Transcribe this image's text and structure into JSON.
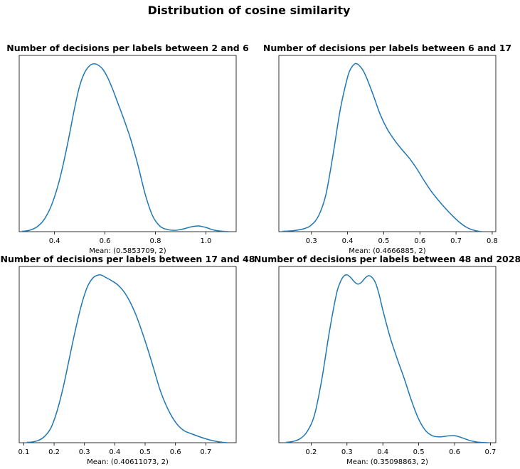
{
  "figure": {
    "title": "Distribution of cosine similarity"
  },
  "chart_data": [
    {
      "type": "line",
      "title": "Number of decisions per labels between 2 and 6",
      "xlabel": "Mean: (0.5853709, 2)",
      "ylabel": "",
      "xlim": [
        0.26,
        1.12
      ],
      "ylim": [
        0,
        1.05
      ],
      "xticks": [
        0.4,
        0.6,
        0.8,
        1.0
      ],
      "xtick_labels": [
        "0.4",
        "0.6",
        "0.8",
        "1.0"
      ],
      "yticks_visible": false,
      "grid": false,
      "color": "#1f77b4",
      "x": [
        0.27,
        0.3,
        0.33,
        0.36,
        0.39,
        0.42,
        0.45,
        0.48,
        0.5,
        0.52,
        0.54,
        0.555,
        0.57,
        0.59,
        0.61,
        0.63,
        0.65,
        0.67,
        0.7,
        0.73,
        0.76,
        0.79,
        0.82,
        0.85,
        0.88,
        0.91,
        0.94,
        0.97,
        1.0,
        1.03,
        1.06,
        1.09
      ],
      "y": [
        0.002,
        0.008,
        0.028,
        0.075,
        0.165,
        0.31,
        0.51,
        0.74,
        0.87,
        0.95,
        0.99,
        1.0,
        0.995,
        0.97,
        0.92,
        0.85,
        0.77,
        0.69,
        0.56,
        0.4,
        0.22,
        0.09,
        0.03,
        0.012,
        0.008,
        0.016,
        0.028,
        0.034,
        0.025,
        0.01,
        0.003,
        0.0
      ]
    },
    {
      "type": "line",
      "title": "Number of decisions per labels between 6 and 17",
      "xlabel": "Mean: (0.4666885, 2)",
      "ylabel": "",
      "xlim": [
        0.21,
        0.81
      ],
      "ylim": [
        0,
        1.05
      ],
      "xticks": [
        0.3,
        0.4,
        0.5,
        0.6,
        0.7,
        0.8
      ],
      "xtick_labels": [
        "0.3",
        "0.4",
        "0.5",
        "0.6",
        "0.7",
        "0.8"
      ],
      "yticks_visible": false,
      "grid": false,
      "color": "#1f77b4",
      "x": [
        0.22,
        0.25,
        0.28,
        0.3,
        0.32,
        0.34,
        0.36,
        0.38,
        0.4,
        0.41,
        0.42,
        0.425,
        0.43,
        0.44,
        0.45,
        0.47,
        0.49,
        0.51,
        0.53,
        0.55,
        0.57,
        0.59,
        0.61,
        0.63,
        0.65,
        0.67,
        0.69,
        0.71,
        0.73,
        0.75,
        0.77
      ],
      "y": [
        0.002,
        0.006,
        0.018,
        0.04,
        0.095,
        0.22,
        0.46,
        0.73,
        0.92,
        0.975,
        1.0,
        1.0,
        0.995,
        0.97,
        0.93,
        0.82,
        0.7,
        0.61,
        0.545,
        0.49,
        0.44,
        0.38,
        0.31,
        0.245,
        0.19,
        0.14,
        0.095,
        0.055,
        0.025,
        0.008,
        0.0
      ]
    },
    {
      "type": "line",
      "title": "Number of decisions per labels between 17 and 48",
      "xlabel": "Mean: (0.40611073, 2)",
      "ylabel": "",
      "xlim": [
        0.085,
        0.8
      ],
      "ylim": [
        0,
        1.05
      ],
      "xticks": [
        0.1,
        0.2,
        0.3,
        0.4,
        0.5,
        0.6,
        0.7
      ],
      "xtick_labels": [
        "0.1",
        "0.2",
        "0.3",
        "0.4",
        "0.5",
        "0.6",
        "0.7"
      ],
      "yticks_visible": false,
      "grid": false,
      "color": "#1f77b4",
      "x": [
        0.11,
        0.13,
        0.15,
        0.17,
        0.19,
        0.21,
        0.23,
        0.25,
        0.27,
        0.29,
        0.31,
        0.33,
        0.35,
        0.36,
        0.37,
        0.39,
        0.41,
        0.43,
        0.45,
        0.47,
        0.49,
        0.51,
        0.53,
        0.55,
        0.57,
        0.59,
        0.61,
        0.63,
        0.65,
        0.68,
        0.71,
        0.74,
        0.77
      ],
      "y": [
        0.002,
        0.005,
        0.015,
        0.04,
        0.09,
        0.19,
        0.33,
        0.5,
        0.67,
        0.82,
        0.93,
        0.985,
        1.0,
        0.995,
        0.985,
        0.965,
        0.94,
        0.9,
        0.84,
        0.76,
        0.66,
        0.55,
        0.43,
        0.31,
        0.22,
        0.15,
        0.1,
        0.07,
        0.055,
        0.035,
        0.018,
        0.006,
        0.0
      ]
    },
    {
      "type": "line",
      "title": "Number of decisions per labels between 48 and 2028",
      "xlabel": "Mean: (0.35098863, 2)",
      "ylabel": "",
      "xlim": [
        0.11,
        0.715
      ],
      "ylim": [
        0,
        1.05
      ],
      "xticks": [
        0.2,
        0.3,
        0.4,
        0.5,
        0.6,
        0.7
      ],
      "xtick_labels": [
        "0.2",
        "0.3",
        "0.4",
        "0.5",
        "0.6",
        "0.7"
      ],
      "yticks_visible": false,
      "grid": false,
      "color": "#1f77b4",
      "x": [
        0.13,
        0.15,
        0.17,
        0.19,
        0.21,
        0.23,
        0.25,
        0.27,
        0.28,
        0.29,
        0.3,
        0.31,
        0.32,
        0.33,
        0.34,
        0.35,
        0.36,
        0.37,
        0.38,
        0.39,
        0.4,
        0.42,
        0.44,
        0.46,
        0.48,
        0.5,
        0.52,
        0.54,
        0.56,
        0.58,
        0.6,
        0.62,
        0.64,
        0.66,
        0.69
      ],
      "y": [
        0.002,
        0.008,
        0.025,
        0.07,
        0.17,
        0.38,
        0.65,
        0.88,
        0.95,
        0.99,
        1.0,
        0.985,
        0.96,
        0.945,
        0.955,
        0.98,
        0.995,
        0.985,
        0.95,
        0.88,
        0.79,
        0.63,
        0.5,
        0.38,
        0.25,
        0.14,
        0.07,
        0.04,
        0.035,
        0.04,
        0.042,
        0.03,
        0.015,
        0.005,
        0.0
      ]
    }
  ]
}
